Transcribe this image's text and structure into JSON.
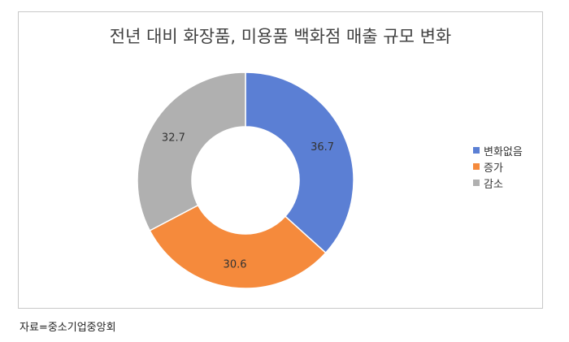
{
  "chart_data": {
    "type": "pie",
    "title": "전년 대비 화장품, 미용품 백화점 매출 규모 변화",
    "categories": [
      "변화없음",
      "증가",
      "감소"
    ],
    "values": [
      36.7,
      30.6,
      32.7
    ],
    "colors": [
      "#5b7fd4",
      "#f58a3c",
      "#b0b0b0"
    ],
    "donut": true,
    "legend_position": "right"
  },
  "source": "자료=중소기업중앙회"
}
